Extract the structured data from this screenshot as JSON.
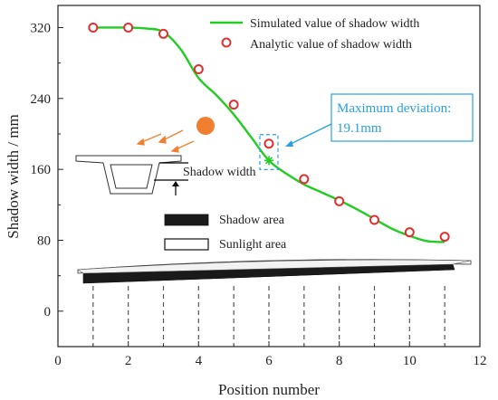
{
  "chart_data": {
    "type": "line",
    "xlabel": "Position number",
    "ylabel": "Shadow width / mm",
    "xlim": [
      0,
      12
    ],
    "ylim": [
      -40,
      345
    ],
    "xticks": [
      0,
      2,
      4,
      6,
      8,
      10,
      12
    ],
    "yticks": [
      0,
      80,
      160,
      240,
      320
    ],
    "grid": false,
    "legend_position": "top-right",
    "series": [
      {
        "name": "Simulated value of shadow width",
        "kind": "line",
        "color": "#22cc22",
        "x": [
          1,
          2,
          2.5,
          3,
          3.5,
          4,
          4.5,
          5,
          5.5,
          6,
          6.5,
          7,
          7.5,
          8,
          8.5,
          9,
          9.5,
          10,
          10.5,
          11
        ],
        "y": [
          320,
          320,
          319,
          315,
          295,
          263,
          244,
          222,
          196,
          170,
          155,
          143,
          134,
          125,
          115,
          104,
          93,
          85,
          79,
          78
        ]
      },
      {
        "name": "Analytic value of shadow width",
        "kind": "scatter",
        "color": "#e03030",
        "x": [
          1,
          2,
          3,
          4,
          5,
          6,
          7,
          8,
          9,
          10,
          11
        ],
        "y": [
          320,
          320,
          313,
          273,
          233,
          189,
          149,
          124,
          103,
          89,
          84
        ]
      }
    ],
    "annotations": {
      "max_deviation_line1": "Maximum deviation:",
      "max_deviation_line2": "19.1mm",
      "max_deviation_at": {
        "x": 6,
        "y_low": 170,
        "y_high": 189
      },
      "inset_shadow_width": "Shadow width",
      "shadow_area": "Shadow area",
      "sunlight_area": "Sunlight area"
    }
  },
  "colors": {
    "sun": "#f08030",
    "sun_rays": "#f08030",
    "callout": "#2aa0e0",
    "shadow_fill": "#1a1a1a"
  }
}
